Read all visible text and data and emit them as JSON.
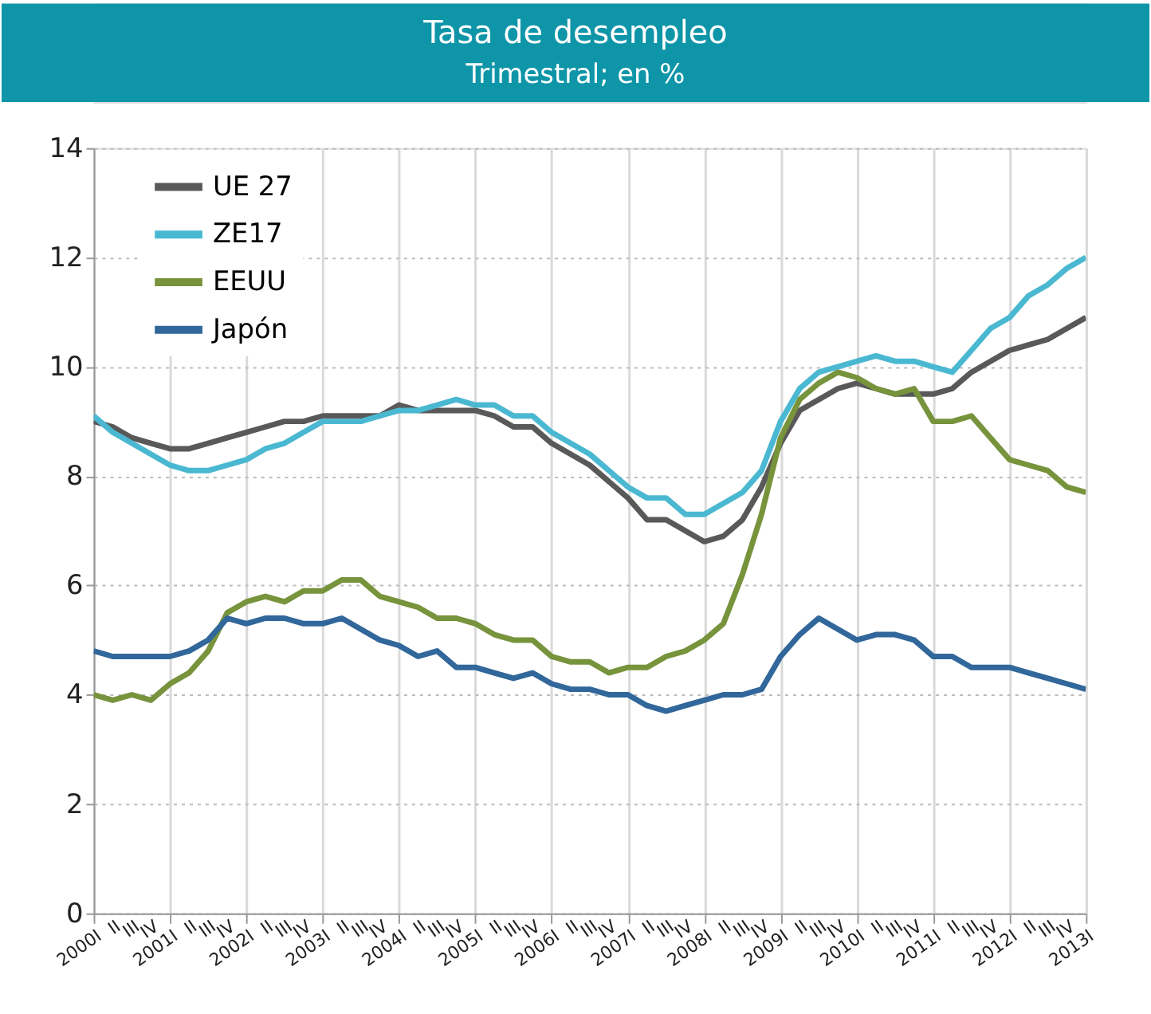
{
  "chart_data": {
    "type": "line",
    "title": "Tasa de desempleo",
    "subtitle": "Trimestral; en %",
    "categories": [
      "2000I",
      "II",
      "III",
      "IV",
      "2001I",
      "II",
      "III",
      "IV",
      "2002I",
      "II",
      "III",
      "IV",
      "2003I",
      "II",
      "III",
      "IV",
      "2004I",
      "II",
      "III",
      "IV",
      "2005I",
      "II",
      "III",
      "IV",
      "2006I",
      "II",
      "III",
      "IV",
      "2007I",
      "II",
      "III",
      "IV",
      "2008I",
      "II",
      "III",
      "IV",
      "2009I",
      "II",
      "III",
      "IV",
      "2010I",
      "II",
      "III",
      "IV",
      "2011I",
      "II",
      "III",
      "IV",
      "2012I",
      "II",
      "III",
      "IV",
      "2013I"
    ],
    "series": [
      {
        "name": "UE 27",
        "color": "#595959",
        "values": [
          9.0,
          8.9,
          8.7,
          8.6,
          8.5,
          8.5,
          8.6,
          8.7,
          8.8,
          8.9,
          9.0,
          9.0,
          9.1,
          9.1,
          9.1,
          9.1,
          9.3,
          9.2,
          9.2,
          9.2,
          9.2,
          9.1,
          8.9,
          8.9,
          8.6,
          8.4,
          8.2,
          7.9,
          7.6,
          7.2,
          7.2,
          7.0,
          6.8,
          6.9,
          7.2,
          7.8,
          8.6,
          9.2,
          9.4,
          9.6,
          9.7,
          9.6,
          9.5,
          9.5,
          9.5,
          9.6,
          9.9,
          10.1,
          10.3,
          10.4,
          10.5,
          10.7,
          10.9
        ]
      },
      {
        "name": "ZE17",
        "color": "#4bb8d2",
        "values": [
          9.1,
          8.8,
          8.6,
          8.4,
          8.2,
          8.1,
          8.1,
          8.2,
          8.3,
          8.5,
          8.6,
          8.8,
          9.0,
          9.0,
          9.0,
          9.1,
          9.2,
          9.2,
          9.3,
          9.4,
          9.3,
          9.3,
          9.1,
          9.1,
          8.8,
          8.6,
          8.4,
          8.1,
          7.8,
          7.6,
          7.6,
          7.3,
          7.3,
          7.5,
          7.7,
          8.1,
          9.0,
          9.6,
          9.9,
          10.0,
          10.1,
          10.2,
          10.1,
          10.1,
          10.0,
          9.9,
          10.3,
          10.7,
          10.9,
          11.3,
          11.5,
          11.8,
          12.0
        ]
      },
      {
        "name": "EEUU",
        "color": "#77933c",
        "values": [
          4.0,
          3.9,
          4.0,
          3.9,
          4.2,
          4.4,
          4.8,
          5.5,
          5.7,
          5.8,
          5.7,
          5.9,
          5.9,
          6.1,
          6.1,
          5.8,
          5.7,
          5.6,
          5.4,
          5.4,
          5.3,
          5.1,
          5.0,
          5.0,
          4.7,
          4.6,
          4.6,
          4.4,
          4.5,
          4.5,
          4.7,
          4.8,
          5.0,
          5.3,
          6.2,
          7.3,
          8.7,
          9.4,
          9.7,
          9.9,
          9.8,
          9.6,
          9.5,
          9.6,
          9.0,
          9.0,
          9.1,
          8.7,
          8.3,
          8.2,
          8.1,
          7.8,
          7.7
        ]
      },
      {
        "name": "Japón",
        "color": "#31679a",
        "values": [
          4.8,
          4.7,
          4.7,
          4.7,
          4.7,
          4.8,
          5.0,
          5.4,
          5.3,
          5.4,
          5.4,
          5.3,
          5.3,
          5.4,
          5.2,
          5.0,
          4.9,
          4.7,
          4.8,
          4.5,
          4.5,
          4.4,
          4.3,
          4.4,
          4.2,
          4.1,
          4.1,
          4.0,
          4.0,
          3.8,
          3.7,
          3.8,
          3.9,
          4.0,
          4.0,
          4.1,
          4.7,
          5.1,
          5.4,
          5.2,
          5.0,
          5.1,
          5.1,
          5.0,
          4.7,
          4.7,
          4.5,
          4.5,
          4.5,
          4.4,
          4.3,
          4.2,
          4.1
        ]
      }
    ],
    "ylim": [
      0,
      14
    ],
    "yticks": [
      0,
      2,
      4,
      6,
      8,
      10,
      12,
      14
    ],
    "grid": true,
    "legend": "top left",
    "marker": "none",
    "line_style": "solid"
  }
}
